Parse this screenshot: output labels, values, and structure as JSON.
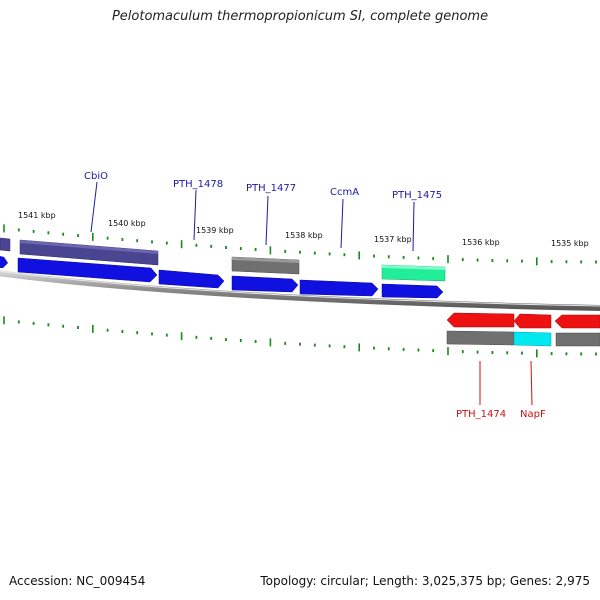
{
  "title": "Pelotomaculum thermopropionicum SI, complete genome",
  "footer": {
    "accession": "Accession: NC_009454",
    "topology": "Topology: circular; Length: 3,025,375 bp; Genes: 2,975"
  },
  "colors": {
    "cds_forward": "#1010e0",
    "cds_reverse": "#ee1111",
    "gene_gray": "#707070",
    "cbio_bar": "#4a4590",
    "ccma_bar": "#22ee99",
    "napf_bar": "#00e8f0",
    "tick": "#1a8a1a",
    "label_forward": "#1a1aa8",
    "label_reverse": "#cc1111",
    "backbone": "#888888"
  },
  "kbp_labels": [
    "1541 kbp",
    "1540 kbp",
    "1539 kbp",
    "1538 kbp",
    "1537 kbp",
    "1536 kbp",
    "1535 kbp"
  ],
  "forward_genes": [
    {
      "name": "CbiO"
    },
    {
      "name": "PTH_1478"
    },
    {
      "name": "PTH_1477"
    },
    {
      "name": "CcmA"
    },
    {
      "name": "PTH_1475"
    }
  ],
  "reverse_genes": [
    {
      "name": "PTH_1474"
    },
    {
      "name": "NapF"
    }
  ]
}
